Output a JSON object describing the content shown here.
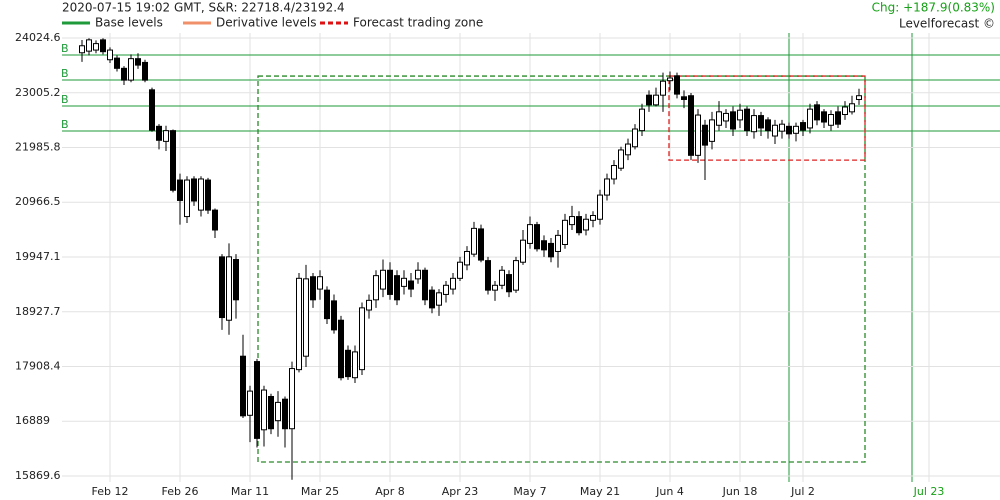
{
  "header": {
    "info": "2020-07-15 19:02 GMT,  S&R: 22718.4/23192.4",
    "change": "Chg: +187.9(0.83%)",
    "brand": "Levelforecast ©",
    "change_color": "#18a018"
  },
  "chart_data": {
    "type": "candlestick",
    "legend": [
      {
        "name": "Base levels",
        "color": "#1f9a3a",
        "style": "solid"
      },
      {
        "name": "Derivative levels",
        "color": "#f0906a",
        "style": "solid"
      },
      {
        "name": "Forecast trading zone",
        "color": "#dd1111",
        "style": "dashed"
      }
    ],
    "ylim": [
      15869.6,
      24024.6
    ],
    "yticks": [
      15869.6,
      16889.0,
      17908.4,
      18927.7,
      19947.1,
      20966.5,
      21985.8,
      23005.2,
      24024.6
    ],
    "grid": true,
    "up_color": "#ffffff",
    "down_color": "#000000",
    "base_levels": {
      "label": "B",
      "color": "#1f9a3a",
      "values": [
        23708,
        23242,
        22758,
        22292
      ]
    },
    "zones": [
      {
        "color": "#2a8a2a",
        "ylim": [
          16130,
          23316
        ]
      },
      {
        "color": "#dd2222",
        "ylim": [
          21751,
          23316
        ]
      }
    ],
    "highlight_color": "#18a018",
    "categories": [
      null,
      null,
      null,
      null,
      "Feb 12",
      null,
      null,
      null,
      null,
      null,
      null,
      null,
      null,
      null,
      "Feb 26",
      null,
      null,
      null,
      null,
      null,
      null,
      null,
      null,
      null,
      "Mar 11",
      null,
      null,
      null,
      null,
      null,
      null,
      null,
      null,
      null,
      "Mar 25",
      null,
      null,
      null,
      null,
      null,
      null,
      null,
      null,
      null,
      "Apr 8",
      null,
      null,
      null,
      null,
      null,
      null,
      null,
      null,
      null,
      "Apr 23",
      null,
      null,
      null,
      null,
      null,
      null,
      null,
      null,
      null,
      "May 7",
      null,
      null,
      null,
      null,
      null,
      null,
      null,
      null,
      null,
      "May 21",
      null,
      null,
      null,
      null,
      null,
      null,
      null,
      null,
      null,
      "Jun 4",
      null,
      null,
      null,
      null,
      null,
      null,
      null,
      null,
      null,
      "Jun 18",
      null,
      null,
      null,
      null,
      null,
      null,
      null,
      null,
      "Jul 2",
      null,
      null,
      null,
      null,
      null,
      null,
      null,
      null,
      null,
      null,
      null,
      null,
      null,
      null,
      null,
      null,
      null,
      "Jul 23"
    ],
    "open": [
      23750,
      23780,
      23800,
      23990,
      23620,
      23650,
      23460,
      23240,
      23640,
      23570,
      23060,
      22380,
      22100,
      22300,
      21380,
      20700,
      21400,
      20820,
      21380,
      20820,
      19950,
      18770,
      19900,
      18100,
      17000,
      18000,
      16730,
      17350,
      16900,
      17300,
      16750,
      17850,
      18100,
      19580,
      19350,
      19330,
      19130,
      18770,
      18210,
      17700,
      17850,
      18960,
      19150,
      19350,
      19700,
      19600,
      19400,
      19500,
      19540,
      19700,
      19330,
      19050,
      19250,
      19350,
      19550,
      19800,
      20000,
      20470,
      19880,
      19330,
      19420,
      19620,
      19330,
      19850,
      20200,
      20550,
      20250,
      20200,
      20050,
      20180,
      20550,
      20700,
      20450,
      20630,
      20650,
      21100,
      21400,
      21600,
      21850,
      22000,
      22300,
      22960,
      22780,
      22960,
      23230,
      23320,
      22930,
      22950,
      21840,
      22400,
      22100,
      22400,
      22480,
      22650,
      22500,
      22700,
      22280,
      22580,
      22500,
      22200,
      22290,
      22380,
      22250,
      22450,
      22350,
      22780,
      22650,
      22400,
      22650,
      22600,
      22650,
      22880,
      null,
      null,
      null,
      null,
      null,
      null,
      null,
      null,
      null,
      null
    ],
    "high": [
      23987,
      24020,
      23980,
      24020,
      23850,
      23700,
      23500,
      23720,
      23740,
      23620,
      23100,
      22420,
      22390,
      22320,
      21500,
      21450,
      21450,
      21450,
      21420,
      20850,
      20000,
      20200,
      20000,
      18500,
      17550,
      18050,
      17550,
      17400,
      17450,
      17350,
      18000,
      19650,
      19800,
      19650,
      19700,
      19400,
      19250,
      18850,
      18300,
      18300,
      19100,
      19250,
      19700,
      19900,
      19850,
      19700,
      19700,
      19650,
      19850,
      19750,
      19400,
      19350,
      19500,
      19650,
      19950,
      20150,
      20600,
      20550,
      19950,
      19500,
      19780,
      19700,
      19950,
      20450,
      20700,
      20600,
      20350,
      20300,
      20450,
      20750,
      20900,
      20800,
      20750,
      20800,
      21200,
      21500,
      21750,
      22000,
      22150,
      22420,
      22800,
      23050,
      23100,
      23380,
      23400,
      23380,
      23050,
      23000,
      22700,
      22500,
      22650,
      22850,
      22700,
      22750,
      22800,
      22750,
      22700,
      22650,
      22550,
      22500,
      22500,
      22450,
      22450,
      22500,
      22800,
      22850,
      22700,
      22680,
      22750,
      22850,
      22950,
      23080,
      null,
      null,
      null,
      null,
      null,
      null,
      null,
      null,
      null,
      null
    ],
    "low": [
      23580,
      23700,
      23740,
      23720,
      23560,
      23400,
      23150,
      23200,
      23450,
      23200,
      22280,
      21950,
      21920,
      21150,
      20550,
      20580,
      20900,
      20700,
      20750,
      20300,
      18590,
      18500,
      18800,
      16950,
      16500,
      16400,
      16420,
      16650,
      16600,
      16400,
      15800,
      17800,
      17900,
      19000,
      19150,
      18700,
      18520,
      17650,
      17660,
      17600,
      17750,
      18800,
      19000,
      19200,
      19150,
      19050,
      19250,
      19200,
      19450,
      19050,
      18900,
      18850,
      19100,
      19250,
      19500,
      19700,
      19950,
      19850,
      19250,
      19130,
      19350,
      19200,
      19280,
      19800,
      20100,
      20050,
      19950,
      19850,
      19750,
      20100,
      20450,
      20350,
      20350,
      20500,
      20550,
      21000,
      21300,
      21550,
      21750,
      21950,
      22200,
      22650,
      22750,
      22650,
      23050,
      22900,
      22720,
      21750,
      21700,
      21380,
      21950,
      22300,
      22350,
      22200,
      22350,
      22200,
      22150,
      22200,
      22150,
      22050,
      22150,
      22150,
      22100,
      22200,
      22250,
      22400,
      22350,
      22300,
      22350,
      22500,
      22600,
      22780,
      null,
      null,
      null,
      null,
      null,
      null,
      null,
      null,
      null,
      null
    ],
    "close": [
      23880,
      23990,
      23920,
      23770,
      23800,
      23460,
      23240,
      23640,
      23520,
      23240,
      22310,
      22120,
      22300,
      21190,
      21000,
      21380,
      20990,
      21400,
      20820,
      20450,
      18820,
      19950,
      19150,
      16990,
      17450,
      16570,
      17470,
      16750,
      17240,
      16750,
      17870,
      19550,
      19540,
      19150,
      19580,
      18800,
      18590,
      17700,
      17720,
      18180,
      19000,
      19140,
      19600,
      19700,
      19250,
      19150,
      19550,
      19350,
      19700,
      19150,
      19000,
      19280,
      19420,
      19550,
      19850,
      20050,
      20480,
      19890,
      19330,
      19420,
      19700,
      19300,
      19880,
      20260,
      20550,
      20100,
      20080,
      19950,
      20350,
      20630,
      20700,
      20400,
      20650,
      20720,
      21100,
      21400,
      21650,
      21940,
      22050,
      22330,
      22700,
      22780,
      22960,
      23220,
      23280,
      22980,
      22880,
      21840,
      22590,
      22030,
      22500,
      22650,
      22620,
      22330,
      22680,
      22300,
      22580,
      22350,
      22300,
      22400,
      22420,
      22240,
      22380,
      22310,
      22700,
      22500,
      22460,
      22600,
      22420,
      22740,
      22800,
      22950,
      null,
      null,
      null,
      null,
      null,
      null,
      null,
      null,
      null,
      null
    ]
  }
}
